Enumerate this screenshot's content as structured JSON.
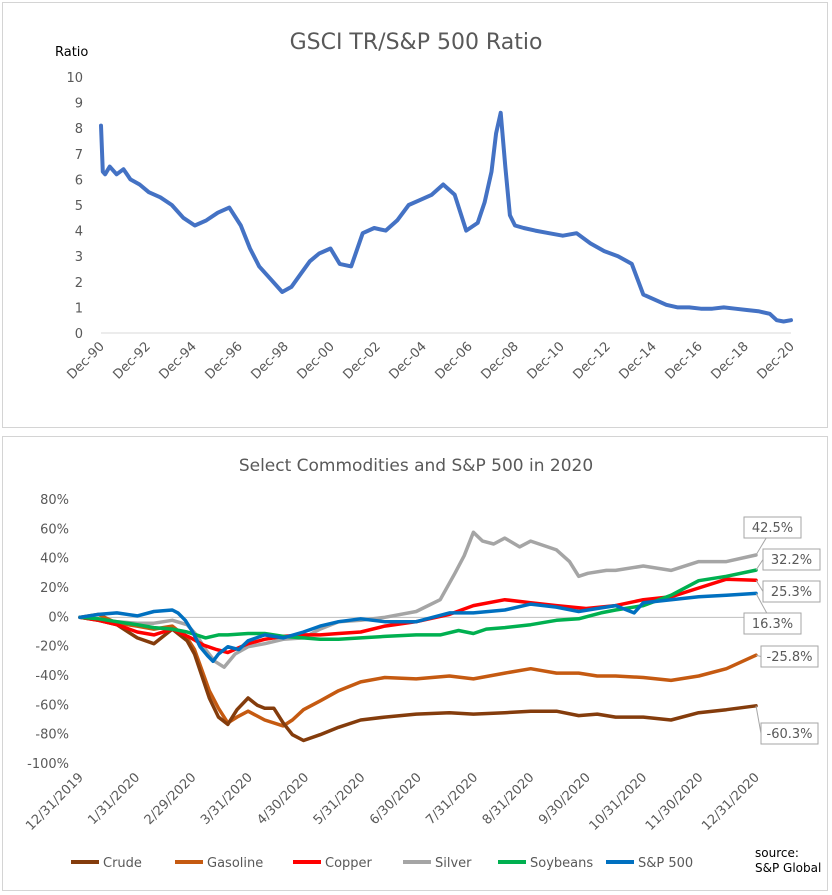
{
  "chart_data": [
    {
      "type": "line",
      "title": "GSCI TR/S&P 500 Ratio",
      "ylabel": "Ratio",
      "ylim": [
        0,
        10
      ],
      "yticks": [
        "0",
        "1",
        "2",
        "3",
        "4",
        "5",
        "6",
        "7",
        "8",
        "9",
        "10"
      ],
      "xlim": [
        1990.92,
        2020.92
      ],
      "xticks": [
        "Dec-90",
        "Dec-92",
        "Dec-94",
        "Dec-96",
        "Dec-98",
        "Dec-00",
        "Dec-02",
        "Dec-04",
        "Dec-06",
        "Dec-08",
        "Dec-10",
        "Dec-12",
        "Dec-14",
        "Dec-16",
        "Dec-18",
        "Dec-20"
      ],
      "grid": false,
      "legend": "none",
      "series": [
        {
          "color": "#4472C4",
          "x": [
            1990.92,
            1991.0,
            1991.1,
            1991.3,
            1991.6,
            1991.9,
            1992.2,
            1992.6,
            1993.0,
            1993.5,
            1994.0,
            1994.5,
            1995.0,
            1995.5,
            1996.0,
            1996.5,
            1997.0,
            1997.4,
            1997.8,
            1998.3,
            1998.8,
            1999.2,
            1999.6,
            2000.0,
            2000.4,
            2000.9,
            2001.3,
            2001.8,
            2002.3,
            2002.8,
            2003.3,
            2003.8,
            2004.3,
            2004.8,
            2005.3,
            2005.8,
            2006.3,
            2006.8,
            2007.3,
            2007.6,
            2007.9,
            2008.1,
            2008.3,
            2008.5,
            2008.7,
            2008.92,
            2009.3,
            2009.8,
            2010.4,
            2011.0,
            2011.6,
            2012.2,
            2012.8,
            2013.4,
            2014.0,
            2014.5,
            2015.0,
            2015.5,
            2016.0,
            2016.5,
            2017.0,
            2017.5,
            2018.0,
            2018.5,
            2019.0,
            2019.5,
            2020.0,
            2020.3,
            2020.6,
            2020.92
          ],
          "y": [
            8.1,
            6.3,
            6.2,
            6.5,
            6.2,
            6.4,
            6.0,
            5.8,
            5.5,
            5.3,
            5.0,
            4.5,
            4.2,
            4.4,
            4.7,
            4.9,
            4.2,
            3.3,
            2.6,
            2.1,
            1.6,
            1.8,
            2.3,
            2.8,
            3.1,
            3.3,
            2.7,
            2.6,
            3.9,
            4.1,
            4.0,
            4.4,
            5.0,
            5.2,
            5.4,
            5.8,
            5.4,
            4.0,
            4.3,
            5.1,
            6.3,
            7.8,
            8.6,
            6.5,
            4.6,
            4.2,
            4.1,
            4.0,
            3.9,
            3.8,
            3.9,
            3.5,
            3.2,
            3.0,
            2.7,
            1.5,
            1.3,
            1.1,
            1.0,
            1.0,
            0.95,
            0.95,
            1.0,
            0.95,
            0.9,
            0.85,
            0.75,
            0.5,
            0.45,
            0.5
          ]
        }
      ]
    },
    {
      "type": "line",
      "title": "Select Commodities and S&P 500 in 2020",
      "ylim": [
        -100,
        80
      ],
      "yticks": [
        "-100%",
        "-80%",
        "-60%",
        "-40%",
        "-20%",
        "0%",
        "20%",
        "40%",
        "60%",
        "80%"
      ],
      "xlim": [
        0,
        366
      ],
      "xticks": [
        "12/31/2019",
        "1/31/2020",
        "2/29/2020",
        "3/31/2020",
        "4/30/2020",
        "5/31/2020",
        "6/30/2020",
        "7/31/2020",
        "8/31/2020",
        "9/30/2020",
        "10/31/2020",
        "11/30/2020",
        "12/31/2020"
      ],
      "grid": false,
      "legend": "bottom",
      "series": [
        {
          "name": "Crude",
          "color": "#843C0C",
          "end_label": "-60.3%",
          "x": [
            0,
            10,
            20,
            31,
            40,
            50,
            58,
            62,
            66,
            70,
            75,
            80,
            85,
            91,
            96,
            100,
            105,
            110,
            115,
            121,
            130,
            140,
            152,
            165,
            182,
            200,
            213,
            230,
            244,
            258,
            270,
            280,
            290,
            305,
            320,
            335,
            350,
            366
          ],
          "y": [
            0,
            -2,
            -5,
            -14,
            -18,
            -8,
            -16,
            -25,
            -40,
            -55,
            -68,
            -73,
            -63,
            -55,
            -60,
            -62,
            -62,
            -72,
            -80,
            -84,
            -80,
            -75,
            -70,
            -68,
            -66,
            -65,
            -66,
            -65,
            -64,
            -64,
            -67,
            -66,
            -68,
            -68,
            -70,
            -65,
            -63,
            -60.3
          ]
        },
        {
          "name": "Gasoline",
          "color": "#C55A11",
          "end_label": "-25.8%",
          "x": [
            0,
            10,
            20,
            31,
            40,
            50,
            58,
            62,
            66,
            70,
            75,
            80,
            85,
            91,
            100,
            110,
            115,
            121,
            130,
            140,
            152,
            165,
            182,
            200,
            213,
            230,
            244,
            258,
            270,
            280,
            290,
            305,
            320,
            335,
            350,
            366
          ],
          "y": [
            0,
            2,
            -4,
            -6,
            -8,
            -6,
            -14,
            -22,
            -36,
            -50,
            -62,
            -72,
            -68,
            -64,
            -70,
            -74,
            -70,
            -63,
            -57,
            -50,
            -44,
            -41,
            -42,
            -40,
            -42,
            -38,
            -35,
            -38,
            -38,
            -40,
            -40,
            -41,
            -43,
            -40,
            -35,
            -25.8
          ]
        },
        {
          "name": "Copper",
          "color": "#FF0000",
          "end_label": "25.3%",
          "x": [
            0,
            10,
            20,
            31,
            40,
            50,
            60,
            67,
            74,
            80,
            91,
            100,
            110,
            121,
            130,
            140,
            152,
            165,
            182,
            200,
            213,
            230,
            244,
            258,
            274,
            290,
            305,
            320,
            335,
            350,
            366
          ],
          "y": [
            0,
            -2,
            -5,
            -10,
            -12,
            -8,
            -14,
            -19,
            -22,
            -24,
            -18,
            -15,
            -13,
            -12,
            -12,
            -11,
            -10,
            -6,
            -3,
            2,
            8,
            12,
            10,
            8,
            6,
            8,
            12,
            14,
            20,
            26,
            25.3
          ]
        },
        {
          "name": "Silver",
          "color": "#A5A5A5",
          "end_label": "42.5%",
          "x": [
            0,
            10,
            20,
            31,
            40,
            50,
            58,
            63,
            68,
            73,
            78,
            84,
            91,
            100,
            110,
            121,
            130,
            140,
            152,
            165,
            182,
            195,
            203,
            208,
            213,
            218,
            224,
            230,
            238,
            244,
            258,
            265,
            270,
            275,
            285,
            290,
            305,
            320,
            335,
            350,
            366
          ],
          "y": [
            0,
            -2,
            -3,
            -4,
            -4,
            -2,
            -5,
            -12,
            -22,
            -30,
            -34,
            -25,
            -20,
            -18,
            -15,
            -14,
            -8,
            -3,
            -2,
            0,
            4,
            12,
            30,
            42,
            58,
            52,
            50,
            54,
            48,
            52,
            46,
            38,
            28,
            30,
            32,
            32,
            35,
            32,
            38,
            38,
            42.5
          ]
        },
        {
          "name": "Soybeans",
          "color": "#00B050",
          "end_label": "32.2%",
          "x": [
            0,
            10,
            20,
            31,
            40,
            50,
            58,
            63,
            68,
            75,
            80,
            91,
            100,
            110,
            121,
            130,
            140,
            152,
            165,
            182,
            195,
            205,
            213,
            220,
            230,
            244,
            258,
            270,
            282,
            290,
            305,
            320,
            335,
            350,
            366
          ],
          "y": [
            0,
            -1,
            -3,
            -5,
            -7,
            -8,
            -10,
            -12,
            -14,
            -12,
            -12,
            -11,
            -11,
            -13,
            -14,
            -15,
            -15,
            -14,
            -13,
            -12,
            -12,
            -9,
            -11,
            -8,
            -7,
            -5,
            -2,
            -1,
            3,
            5,
            8,
            15,
            25,
            28,
            32.2
          ]
        },
        {
          "name": "S&P 500",
          "color": "#0070C0",
          "end_label": "16.3%",
          "x": [
            0,
            10,
            20,
            31,
            40,
            50,
            53,
            57,
            61,
            65,
            69,
            72,
            75,
            80,
            86,
            91,
            100,
            110,
            121,
            130,
            140,
            152,
            165,
            182,
            200,
            213,
            230,
            244,
            258,
            270,
            280,
            290,
            300,
            305,
            320,
            335,
            350,
            366
          ],
          "y": [
            0,
            2,
            3,
            1,
            4,
            5,
            3,
            -2,
            -10,
            -20,
            -26,
            -30,
            -25,
            -20,
            -22,
            -16,
            -12,
            -14,
            -10,
            -6,
            -3,
            -1,
            -3,
            -3,
            3,
            3,
            5,
            9,
            7,
            4,
            6,
            8,
            3,
            10,
            12,
            14,
            15,
            16.3
          ]
        }
      ]
    }
  ],
  "source": {
    "line1": "source:",
    "line2": "S&P Global"
  }
}
